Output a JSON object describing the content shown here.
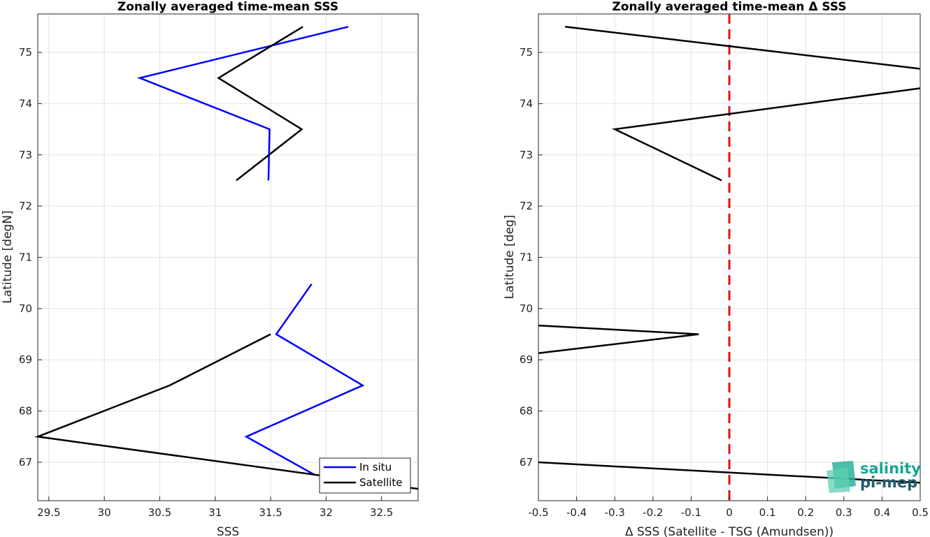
{
  "chart_data": [
    {
      "type": "line",
      "title": "Zonally averaged time-mean SSS",
      "xlabel": "SSS",
      "ylabel": "Latitude [degN]",
      "xlim": [
        29.4,
        32.83
      ],
      "ylim": [
        66.25,
        75.75
      ],
      "xticks": [
        "29.5",
        "30",
        "30.5",
        "31",
        "31.5",
        "32",
        "32.5"
      ],
      "yticks": [
        "67",
        "68",
        "69",
        "70",
        "71",
        "72",
        "73",
        "74",
        "75"
      ],
      "grid": true,
      "legend": "bottom-right",
      "series": [
        {
          "name": "In situ",
          "color": "#0000ff",
          "points": [
            [
              32.2,
              75.5
            ],
            [
              30.32,
              74.5
            ],
            [
              31.49,
              73.5
            ],
            [
              31.48,
              72.5
            ],
            [
              null,
              null
            ],
            [
              31.87,
              70.48
            ],
            [
              31.55,
              69.5
            ],
            [
              32.33,
              68.5
            ],
            [
              31.28,
              67.5
            ],
            [
              31.9,
              66.75
            ]
          ]
        },
        {
          "name": "Satellite",
          "color": "#000000",
          "points": [
            [
              31.79,
              75.5
            ],
            [
              31.03,
              74.5
            ],
            [
              31.78,
              73.5
            ],
            [
              31.19,
              72.5
            ],
            [
              null,
              null
            ],
            [
              31.5,
              69.5
            ],
            [
              30.59,
              68.5
            ],
            [
              29.4,
              67.5
            ],
            [
              32.83,
              66.48
            ]
          ]
        }
      ]
    },
    {
      "type": "line",
      "title": "Zonally averaged time-mean Δ SSS",
      "xlabel": "Δ SSS (Satellite - TSG (Amundsen))",
      "ylabel": "Latitude [deg]",
      "xlim": [
        -0.5,
        0.5
      ],
      "ylim": [
        66.25,
        75.75
      ],
      "xticks": [
        "-0.5",
        "-0.4",
        "-0.3",
        "-0.2",
        "-0.1",
        "0",
        "0.1",
        "0.2",
        "0.3",
        "0.4",
        "0.5"
      ],
      "yticks": [
        "67",
        "68",
        "69",
        "70",
        "71",
        "72",
        "73",
        "74",
        "75"
      ],
      "grid": true,
      "reference_line": {
        "x": 0,
        "color": "#e01010",
        "style": "dashed"
      },
      "series": [
        {
          "name": "",
          "color": "#000000",
          "points": [
            [
              -0.43,
              75.5
            ],
            [
              0.5,
              74.68
            ],
            [
              null,
              null
            ],
            [
              0.5,
              74.3
            ],
            [
              -0.3,
              73.5
            ],
            [
              -0.02,
              72.5
            ],
            [
              null,
              null
            ],
            [
              -0.5,
              69.67
            ],
            [
              -0.08,
              69.5
            ],
            [
              -0.5,
              69.13
            ],
            [
              null,
              null
            ],
            [
              -0.5,
              67.0
            ],
            [
              0.5,
              66.6
            ]
          ]
        }
      ]
    }
  ],
  "logo": {
    "line1": "salinity",
    "line2": "pi-mep"
  }
}
